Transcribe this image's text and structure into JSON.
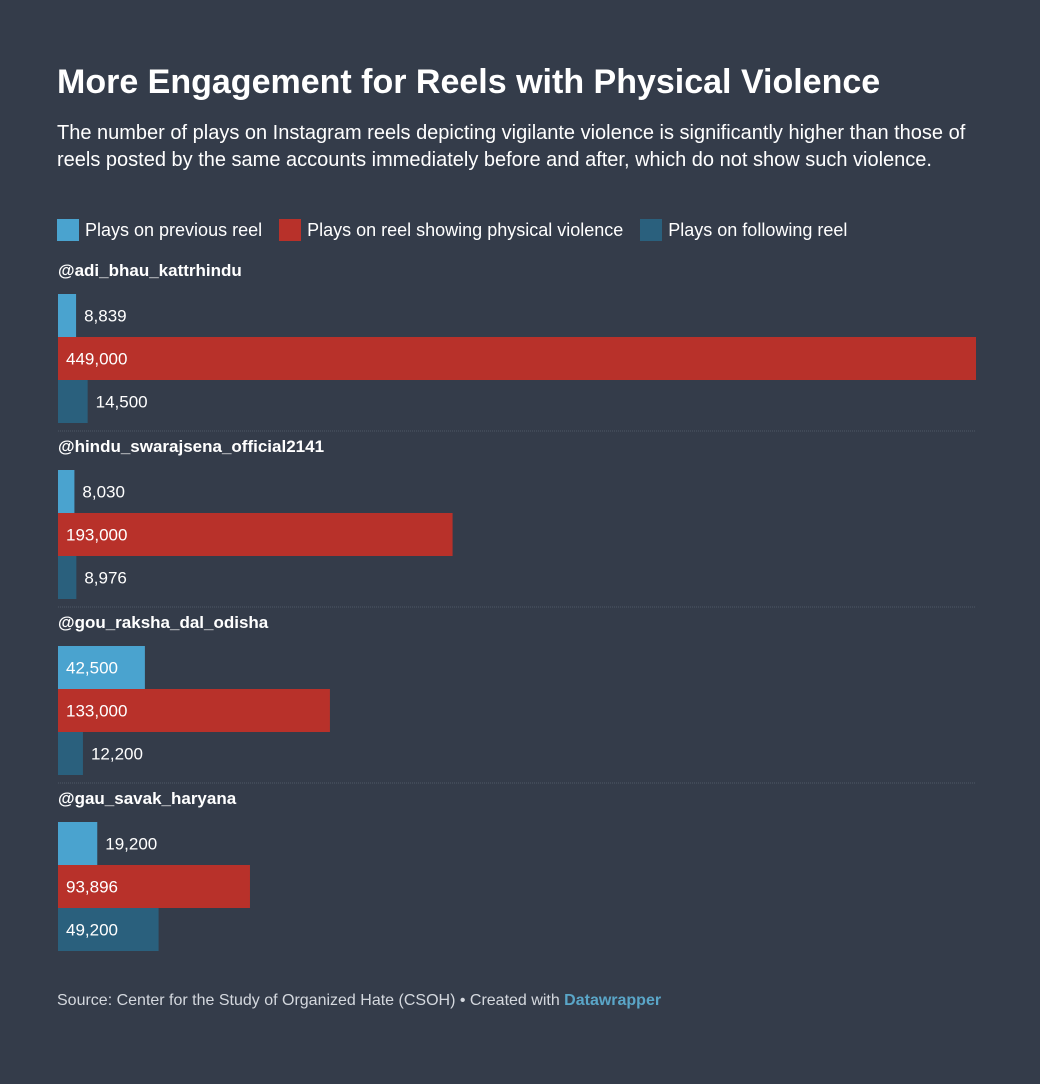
{
  "title": "More Engagement for Reels with Physical Violence",
  "subtitle": "The number of plays on Instagram reels depicting vigilante violence is significantly higher than those of reels posted by the same accounts immediately before and after, which do not show such violence.",
  "source": {
    "text": "Source: Center for the Study of Organized Hate (CSOH) • Created with ",
    "brand": "Datawrapper"
  },
  "colors": {
    "background": "#343c4a",
    "previous": "#4aa3cf",
    "violence": "#b8312a",
    "following": "#2a607d"
  },
  "chart_data": {
    "type": "bar",
    "orientation": "horizontal",
    "grouped": true,
    "title": "More Engagement for Reels with Physical Violence",
    "xlim": [
      0,
      449000
    ],
    "legend_position": "top-left",
    "grid": false,
    "categories": [
      "@adi_bhau_kattrhindu",
      "@hindu_swarajsena_official2141",
      "@gou_raksha_dal_odisha",
      "@gau_savak_haryana"
    ],
    "series": [
      {
        "name": "Plays on previous reel",
        "color": "#4aa3cf",
        "values": [
          8839,
          8030,
          42500,
          19200
        ],
        "labels": [
          "8,839",
          "8,030",
          "42,500",
          "19,200"
        ]
      },
      {
        "name": "Plays on reel showing physical violence",
        "color": "#b8312a",
        "values": [
          449000,
          193000,
          133000,
          93896
        ],
        "labels": [
          "449,000",
          "193,000",
          "133,000",
          "93,896"
        ]
      },
      {
        "name": "Plays on following reel",
        "color": "#2a607d",
        "values": [
          14500,
          8976,
          12200,
          49200
        ],
        "labels": [
          "14,500",
          "8,976",
          "12,200",
          "49,200"
        ]
      }
    ]
  }
}
